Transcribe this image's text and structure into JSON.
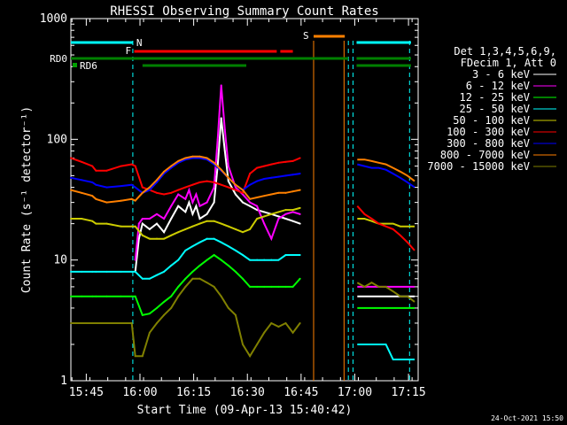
{
  "chart_data": {
    "type": "line",
    "title": "RHESSI Observing Summary Count Rates",
    "xlabel": "Start Time (09-Apr-13 15:40:42)",
    "ylabel": "Count Rate (s⁻¹ detector⁻¹)",
    "x_units": "minutes after 15:40:42",
    "xlim": [
      0,
      97
    ],
    "ylim": [
      1,
      1000
    ],
    "yscale": "log",
    "x_ticks": [
      {
        "label": "15:45",
        "x": 4.3
      },
      {
        "label": "16:00",
        "x": 19.3
      },
      {
        "label": "16:15",
        "x": 34.3
      },
      {
        "label": "16:30",
        "x": 49.3
      },
      {
        "label": "16:45",
        "x": 64.3
      },
      {
        "label": "17:00",
        "x": 79.3
      },
      {
        "label": "17:15",
        "x": 94.3
      }
    ],
    "y_ticks": [
      {
        "label": "1",
        "y": 1
      },
      {
        "label": "10",
        "y": 10
      },
      {
        "label": "100",
        "y": 100
      },
      {
        "label": "1000",
        "y": 1000
      }
    ],
    "legend_header": [
      "Det 1,3,4,5,6,9,",
      "FDecim 1, Att 0"
    ],
    "legend_position": "right",
    "series": [
      {
        "name": "3 - 6 keV",
        "color": "#ffffff",
        "x": [
          18,
          19,
          20,
          22,
          24,
          26,
          28,
          30,
          32,
          33,
          34,
          35,
          36,
          38,
          40,
          41,
          42,
          43,
          44,
          46,
          48,
          50,
          52,
          54,
          56,
          58,
          60,
          62,
          64
        ],
        "y": [
          8,
          15,
          20,
          18,
          20,
          17,
          22,
          28,
          25,
          30,
          24,
          28,
          22,
          24,
          30,
          60,
          150,
          80,
          45,
          35,
          30,
          28,
          26,
          25,
          24,
          23,
          22,
          21,
          20
        ]
      },
      {
        "name": "6 - 12 keV",
        "color": "#ff00ff",
        "x": [
          18,
          19,
          20,
          22,
          24,
          26,
          28,
          30,
          32,
          33,
          34,
          35,
          36,
          38,
          40,
          41,
          42,
          43,
          44,
          46,
          48,
          50,
          52,
          54,
          56,
          58,
          60,
          62,
          64
        ],
        "y": [
          10,
          20,
          22,
          22,
          24,
          22,
          28,
          35,
          32,
          38,
          30,
          35,
          28,
          30,
          40,
          100,
          280,
          120,
          60,
          40,
          35,
          30,
          28,
          20,
          15,
          22,
          24,
          25,
          24
        ]
      },
      {
        "name": "12 - 25 keV",
        "color": "#00ff00",
        "x": [
          0,
          3,
          6,
          7,
          10,
          14,
          17,
          18,
          20,
          22,
          24,
          26,
          28,
          30,
          32,
          34,
          36,
          38,
          40,
          42,
          44,
          46,
          48,
          50,
          52,
          54,
          56,
          58,
          60,
          62,
          64
        ],
        "y": [
          5,
          5,
          5,
          5,
          5,
          5,
          5,
          5,
          3.5,
          3.6,
          4,
          4.5,
          5,
          6,
          7,
          8,
          9,
          10,
          11,
          10,
          9,
          8,
          7,
          6,
          6,
          6,
          6,
          6,
          6,
          6,
          7
        ]
      },
      {
        "name": "25 - 50 keV",
        "color": "#00ffff",
        "x": [
          0,
          3,
          6,
          7,
          10,
          14,
          17,
          18,
          20,
          22,
          24,
          26,
          28,
          30,
          32,
          34,
          36,
          38,
          40,
          42,
          44,
          46,
          48,
          50,
          52,
          54,
          56,
          58,
          60,
          62,
          64
        ],
        "y": [
          8,
          8,
          8,
          8,
          8,
          8,
          8,
          8,
          7,
          7,
          7.5,
          8,
          9,
          10,
          12,
          13,
          14,
          15,
          15,
          14,
          13,
          12,
          11,
          10,
          10,
          10,
          10,
          10,
          11,
          11,
          11
        ]
      },
      {
        "name": "50 - 100 keV",
        "color": "#cccc00",
        "x": [
          0,
          3,
          6,
          7,
          10,
          14,
          17,
          18,
          20,
          22,
          24,
          26,
          28,
          30,
          32,
          34,
          36,
          38,
          40,
          42,
          44,
          46,
          48,
          50,
          52,
          54,
          56,
          58,
          60,
          62,
          64
        ],
        "y": [
          22,
          22,
          21,
          20,
          20,
          19,
          19,
          19,
          16,
          15,
          15,
          15,
          16,
          17,
          18,
          19,
          20,
          21,
          21,
          20,
          19,
          18,
          17,
          18,
          22,
          23,
          24,
          25,
          26,
          26,
          27
        ]
      },
      {
        "name": "100 - 300 keV",
        "color": "#ff0000",
        "x": [
          0,
          3,
          6,
          7,
          10,
          14,
          17,
          18,
          20,
          22,
          24,
          26,
          28,
          30,
          32,
          34,
          36,
          38,
          40,
          42,
          44,
          46,
          48,
          50,
          52,
          54,
          56,
          58,
          60,
          62,
          64
        ],
        "y": [
          70,
          65,
          60,
          55,
          55,
          60,
          62,
          60,
          40,
          38,
          36,
          35,
          36,
          38,
          40,
          42,
          44,
          45,
          44,
          42,
          40,
          38,
          36,
          52,
          58,
          60,
          62,
          64,
          65,
          66,
          70
        ]
      },
      {
        "name": "300 - 800 keV",
        "color": "#0000ff",
        "x": [
          0,
          3,
          6,
          7,
          10,
          14,
          17,
          18,
          20,
          22,
          24,
          26,
          28,
          30,
          32,
          34,
          36,
          38,
          40,
          42,
          44,
          46,
          48,
          50,
          52,
          54,
          56,
          58,
          60,
          62,
          64
        ],
        "y": [
          48,
          46,
          44,
          42,
          40,
          41,
          42,
          40,
          36,
          38,
          44,
          52,
          58,
          64,
          68,
          70,
          70,
          68,
          62,
          55,
          48,
          42,
          38,
          42,
          45,
          47,
          48,
          49,
          50,
          51,
          52
        ]
      },
      {
        "name": "800 - 7000 keV",
        "color": "#ff8000",
        "x": [
          0,
          3,
          6,
          7,
          10,
          14,
          17,
          18,
          20,
          22,
          24,
          26,
          28,
          30,
          32,
          34,
          36,
          38,
          40,
          42,
          44,
          46,
          48,
          50,
          52,
          54,
          56,
          58,
          60,
          62,
          64
        ],
        "y": [
          38,
          36,
          34,
          32,
          30,
          31,
          32,
          31,
          36,
          40,
          46,
          54,
          60,
          66,
          70,
          72,
          72,
          70,
          64,
          56,
          48,
          42,
          38,
          32,
          33,
          34,
          35,
          36,
          36,
          37,
          38
        ]
      },
      {
        "name": "7000 - 15000 keV",
        "color": "#808000",
        "x": [
          0,
          3,
          6,
          7,
          10,
          14,
          17,
          18,
          20,
          22,
          24,
          26,
          28,
          30,
          32,
          34,
          36,
          38,
          40,
          42,
          44,
          46,
          48,
          50,
          52,
          54,
          56,
          58,
          60,
          62,
          64
        ],
        "y": [
          3,
          3,
          3,
          3,
          3,
          3,
          3,
          1.6,
          1.6,
          2.5,
          3,
          3.5,
          4,
          5,
          6,
          7,
          7,
          6.5,
          6,
          5,
          4,
          3.5,
          2,
          1.6,
          2,
          2.5,
          3,
          2.8,
          3,
          2.5,
          3
        ]
      }
    ],
    "second_interval": {
      "x": [
        80,
        82,
        84,
        86,
        88,
        90,
        92,
        94,
        96
      ],
      "series_y": {
        "3 - 6 keV": [
          5,
          5,
          5,
          5,
          5,
          5,
          5,
          5,
          5
        ],
        "6 - 12 keV": [
          6,
          6,
          6,
          6,
          6,
          6,
          6,
          6,
          6
        ],
        "12 - 25 keV": [
          4,
          4,
          4,
          4,
          4,
          4,
          4,
          4,
          4
        ],
        "25 - 50 keV": [
          2,
          2,
          2,
          2,
          2,
          1.5,
          1.5,
          1.5,
          1.5
        ],
        "50 - 100 keV": [
          22,
          22,
          21,
          20,
          20,
          20,
          19,
          19,
          19
        ],
        "100 - 300 keV": [
          28,
          24,
          22,
          20,
          19,
          18,
          16,
          14,
          12
        ],
        "300 - 800 keV": [
          62,
          60,
          58,
          58,
          56,
          52,
          48,
          44,
          40
        ],
        "800 - 7000 keV": [
          68,
          68,
          66,
          64,
          62,
          58,
          54,
          50,
          45
        ],
        "7000 - 15000 keV": [
          6.5,
          6,
          6.5,
          6,
          6,
          5.5,
          5,
          5,
          4.5
        ]
      }
    },
    "bars": [
      {
        "label": "N",
        "color": "#00ffff",
        "segments": [
          [
            0,
            17.3
          ],
          [
            79.8,
            95
          ]
        ]
      },
      {
        "label": "F",
        "color": "#ff0000",
        "segments": [
          [
            17.7,
            57.5
          ],
          [
            58.5,
            62
          ]
        ]
      },
      {
        "label": "S",
        "color": "#ff8000",
        "segments": [
          [
            67.8,
            76.5
          ]
        ]
      },
      {
        "label": "RD0",
        "color": "#008000",
        "segments": [
          [
            0,
            77.5
          ],
          [
            79.8,
            95
          ]
        ]
      },
      {
        "label": "RD6",
        "color": "#008000",
        "segments": [
          [
            20,
            49
          ],
          [
            79.8,
            95
          ]
        ]
      }
    ],
    "vlines": [
      {
        "x": 17.3,
        "color": "#00ffff"
      },
      {
        "x": 67.8,
        "color": "#ff8000"
      },
      {
        "x": 76.3,
        "color": "#ff8000"
      },
      {
        "x": 77.5,
        "color": "#00ffff"
      },
      {
        "x": 78.8,
        "color": "#00ffff"
      },
      {
        "x": 94.6,
        "color": "#00ffff"
      }
    ],
    "footer_timestamp": "24-Oct-2021 15:50"
  }
}
